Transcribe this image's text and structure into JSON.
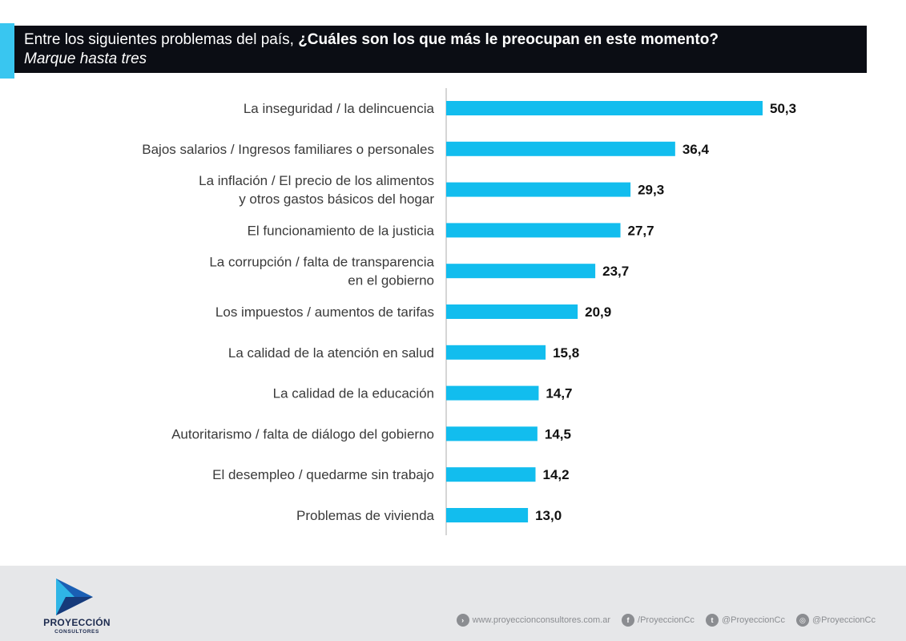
{
  "header": {
    "title_plain": "Entre los siguientes problemas del país, ",
    "title_bold": "¿Cuáles son los que más le preocupan en este momento?",
    "subtitle": "Marque hasta tres"
  },
  "chart_data": {
    "type": "bar",
    "orientation": "horizontal",
    "title": "Entre los siguientes problemas del país, ¿Cuáles son los que más le preocupan en este momento?",
    "subtitle": "Marque hasta tres",
    "categories": [
      "La inseguridad / la delincuencia",
      "Bajos salarios / Ingresos familiares o personales",
      "La inflación / El precio de los alimentos\ny otros gastos básicos del hogar",
      "El funcionamiento de la justicia",
      "La corrupción / falta de transparencia\nen el gobierno",
      "Los impuestos / aumentos de tarifas",
      "La calidad de la atención en salud",
      "La calidad de la educación",
      "Autoritarismo / falta de diálogo del gobierno",
      "El desempleo / quedarme sin trabajo",
      "Problemas de vivienda"
    ],
    "values": [
      50.3,
      36.4,
      29.3,
      27.7,
      23.7,
      20.9,
      15.8,
      14.7,
      14.5,
      14.2,
      13.0
    ],
    "value_labels": [
      "50,3",
      "36,4",
      "29,3",
      "27,7",
      "23,7",
      "20,9",
      "15,8",
      "14,7",
      "14,5",
      "14,2",
      "13,0"
    ],
    "xlim": [
      0,
      52
    ],
    "bar_color": "#12bdee",
    "grid": false
  },
  "footer": {
    "logo_name": "PROYECCIÓN",
    "logo_sub": "CONSULTORES",
    "website": "www.proyeccionconsultores.com.ar",
    "facebook": "/ProyeccionCc",
    "twitter": "@ProyeccionCc",
    "instagram": "@ProyeccionCc"
  },
  "colors": {
    "accent": "#39c6f0",
    "title_bg": "#0b0d14",
    "footer_bg": "#e6e7e9",
    "logo_dark": "#1d2b4f",
    "logo_blue": "#1a5fb4"
  }
}
